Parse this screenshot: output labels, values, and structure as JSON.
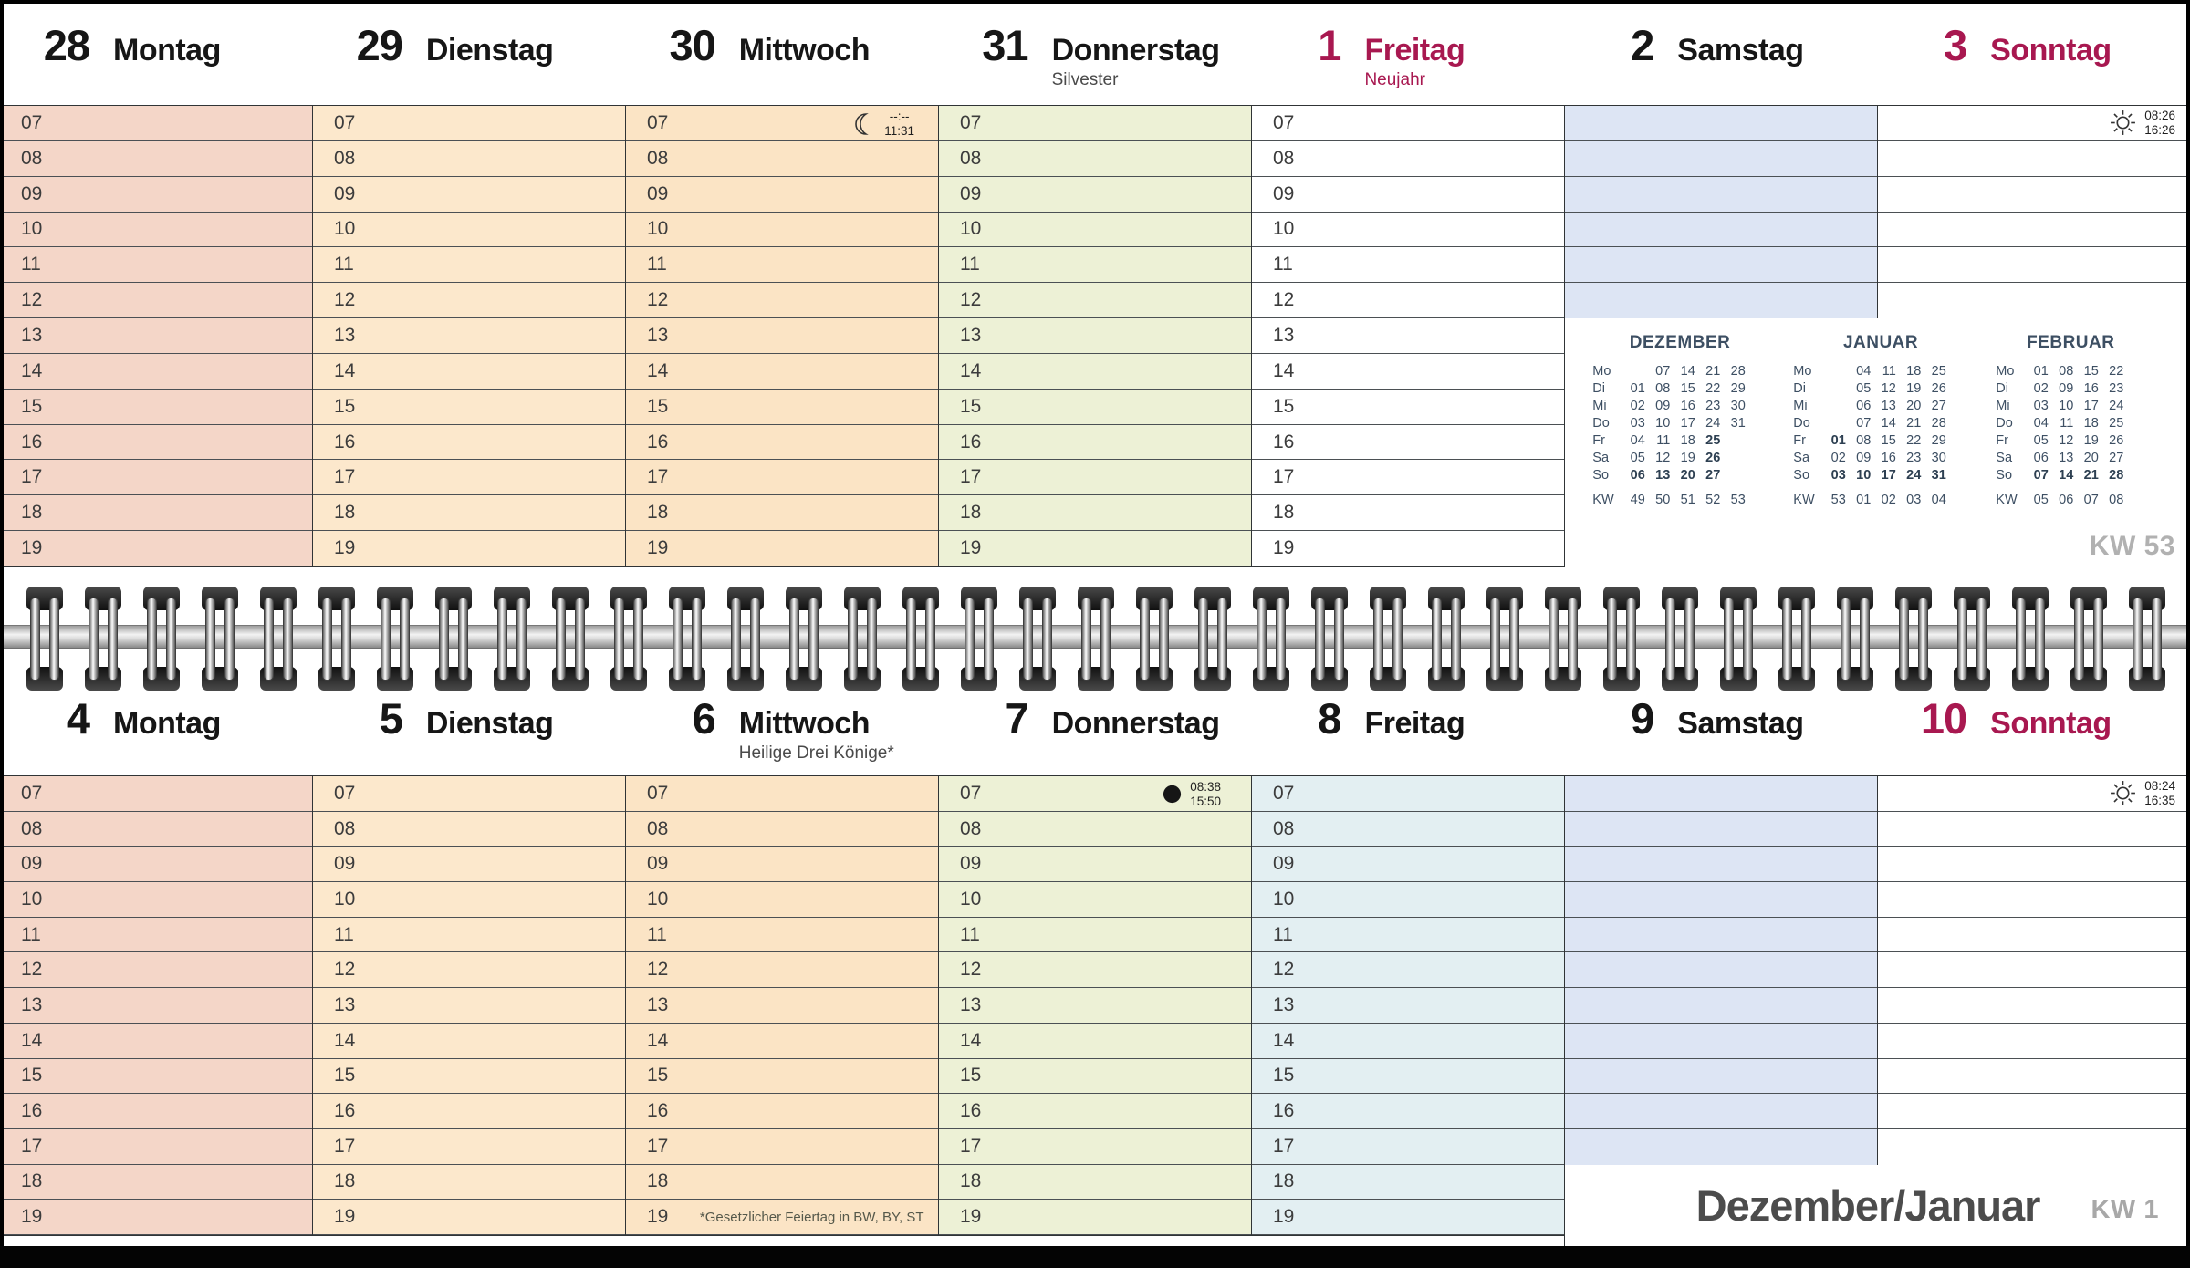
{
  "hours": [
    "07",
    "08",
    "09",
    "10",
    "11",
    "12",
    "13",
    "14",
    "15",
    "16",
    "17",
    "18",
    "19"
  ],
  "colors": {
    "monday": "#f4d6c8",
    "tuesday": "#fce8cc",
    "wednesday": "#fbe4c5",
    "thursday": "#edf1d6",
    "friday_week2": "#e3eff2",
    "saturday": "#dde5f4",
    "white": "#ffffff",
    "holiday_red": "#a81850",
    "minical_text": "#3d4f63"
  },
  "week1": {
    "kw_label": "KW 53",
    "days": [
      {
        "number": "28",
        "name": "Montag",
        "bg": "#f4d6c8",
        "show_hours": true,
        "rows": 13
      },
      {
        "number": "29",
        "name": "Dienstag",
        "bg": "#fce8cc",
        "show_hours": true,
        "rows": 13
      },
      {
        "number": "30",
        "name": "Mittwoch",
        "bg": "#fbe4c5",
        "show_hours": true,
        "rows": 13,
        "event": {
          "icon": "moon-crescent-icon",
          "line1": "--:--",
          "line2": "11:31"
        }
      },
      {
        "number": "31",
        "name": "Donnerstag",
        "sub": "Silvester",
        "bg": "#edf1d6",
        "show_hours": true,
        "rows": 13
      },
      {
        "number": "1",
        "name": "Freitag",
        "sub": "Neujahr",
        "red": true,
        "sub_red": true,
        "bg": "#ffffff",
        "show_hours": true,
        "rows": 13
      },
      {
        "number": "2",
        "name": "Samstag",
        "bg": "#dde5f4",
        "show_hours": false,
        "rows": 6
      },
      {
        "number": "3",
        "name": "Sonntag",
        "red": true,
        "bg": "#ffffff",
        "show_hours": false,
        "rows": 6,
        "event": {
          "icon": "sun-icon",
          "line1": "08:26",
          "line2": "16:26"
        }
      }
    ]
  },
  "week2": {
    "kw_label": "KW 1",
    "title": "Dezember/Januar",
    "footnote": "*Gesetzlicher Feiertag in BW, BY, ST",
    "days": [
      {
        "number": "4",
        "name": "Montag",
        "bg": "#f4d6c8",
        "show_hours": true,
        "rows": 13
      },
      {
        "number": "5",
        "name": "Dienstag",
        "bg": "#fce8cc",
        "show_hours": true,
        "rows": 13
      },
      {
        "number": "6",
        "name": "Mittwoch",
        "sub": "Heilige Drei Könige*",
        "bg": "#fbe4c5",
        "show_hours": true,
        "rows": 13
      },
      {
        "number": "7",
        "name": "Donnerstag",
        "bg": "#edf1d6",
        "show_hours": true,
        "rows": 13,
        "event": {
          "icon": "new-moon-icon",
          "line1": "08:38",
          "line2": "15:50"
        }
      },
      {
        "number": "8",
        "name": "Freitag",
        "bg": "#e3eff2",
        "show_hours": true,
        "rows": 13
      },
      {
        "number": "9",
        "name": "Samstag",
        "bg": "#dde5f4",
        "show_hours": false,
        "rows": 11
      },
      {
        "number": "10",
        "name": "Sonntag",
        "red": true,
        "bg": "#ffffff",
        "show_hours": false,
        "rows": 11,
        "event": {
          "icon": "sun-icon",
          "line1": "08:24",
          "line2": "16:35"
        }
      }
    ]
  },
  "minicals": [
    {
      "title": "DEZEMBER",
      "day_labels": [
        "Mo",
        "Di",
        "Mi",
        "Do",
        "Fr",
        "Sa",
        "So"
      ],
      "rows": [
        [
          "",
          "07",
          "14",
          "21",
          "28"
        ],
        [
          "01",
          "08",
          "15",
          "22",
          "29"
        ],
        [
          "02",
          "09",
          "16",
          "23",
          "30"
        ],
        [
          "03",
          "10",
          "17",
          "24",
          "31"
        ],
        [
          "04",
          "11",
          "18",
          "!25",
          ""
        ],
        [
          "05",
          "12",
          "19",
          "!26",
          ""
        ],
        [
          "!06",
          "!13",
          "!20",
          "!27",
          ""
        ]
      ],
      "kw_label": "KW",
      "kw_row": [
        "49",
        "50",
        "51",
        "52",
        "53"
      ]
    },
    {
      "title": "JANUAR",
      "day_labels": [
        "Mo",
        "Di",
        "Mi",
        "Do",
        "Fr",
        "Sa",
        "So"
      ],
      "rows": [
        [
          "",
          "04",
          "11",
          "18",
          "25"
        ],
        [
          "",
          "05",
          "12",
          "19",
          "26"
        ],
        [
          "",
          "06",
          "13",
          "20",
          "27"
        ],
        [
          "",
          "07",
          "14",
          "21",
          "28"
        ],
        [
          "!01",
          "08",
          "15",
          "22",
          "29"
        ],
        [
          "02",
          "09",
          "16",
          "23",
          "30"
        ],
        [
          "!03",
          "!10",
          "!17",
          "!24",
          "!31"
        ]
      ],
      "kw_label": "KW",
      "kw_row": [
        "53",
        "01",
        "02",
        "03",
        "04"
      ]
    },
    {
      "title": "FEBRUAR",
      "day_labels": [
        "Mo",
        "Di",
        "Mi",
        "Do",
        "Fr",
        "Sa",
        "So"
      ],
      "rows": [
        [
          "01",
          "08",
          "15",
          "22"
        ],
        [
          "02",
          "09",
          "16",
          "23"
        ],
        [
          "03",
          "10",
          "17",
          "24"
        ],
        [
          "04",
          "11",
          "18",
          "25"
        ],
        [
          "05",
          "12",
          "19",
          "26"
        ],
        [
          "06",
          "13",
          "20",
          "27"
        ],
        [
          "!07",
          "!14",
          "!21",
          "!28"
        ]
      ],
      "kw_label": "KW",
      "kw_row": [
        "05",
        "06",
        "07",
        "08"
      ]
    }
  ]
}
